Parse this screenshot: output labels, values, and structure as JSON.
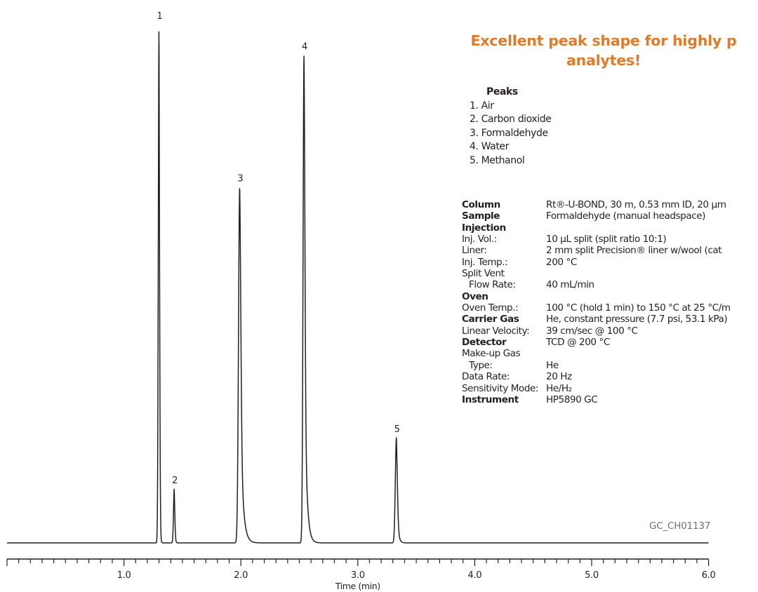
{
  "headline": {
    "line1": "Excellent peak shape for highly p",
    "line2": "analytes!"
  },
  "peaks": {
    "title": "Peaks",
    "items": [
      {
        "label": "1.  Air"
      },
      {
        "label": "2.  Carbon dioxide"
      },
      {
        "label": "3.  Formaldehyde"
      },
      {
        "label": "4.  Water"
      },
      {
        "label": "5.  Methanol"
      }
    ]
  },
  "conditions": [
    {
      "label": "Column",
      "value": "Rt®-U-BOND, 30 m, 0.53 mm ID, 20 µm",
      "bold": true
    },
    {
      "label": "Sample",
      "value": "Formaldehyde (manual headspace)",
      "bold": true
    },
    {
      "label": "Injection",
      "value": "",
      "bold": true
    },
    {
      "label": "Inj. Vol.:",
      "value": "10 µL split (split ratio 10:1)",
      "bold": false
    },
    {
      "label": "Liner:",
      "value": "2 mm split Precision® liner w/wool (cat",
      "bold": false
    },
    {
      "label": "Inj. Temp.:",
      "value": "200 °C",
      "bold": false
    },
    {
      "label": "Split Vent",
      "value": "",
      "bold": false
    },
    {
      "label": "Flow Rate:",
      "value": "40 mL/min",
      "bold": false,
      "indent": true
    },
    {
      "label": "Oven",
      "value": "",
      "bold": true
    },
    {
      "label": "Oven Temp.:",
      "value": "100 °C (hold 1 min) to 150 °C at 25 °C/m",
      "bold": false
    },
    {
      "label": "Carrier Gas",
      "value": "He, constant pressure (7.7 psi, 53.1 kPa)",
      "bold": true
    },
    {
      "label": "Linear Velocity:",
      "value": "39 cm/sec @ 100 °C",
      "bold": false
    },
    {
      "label": "Detector",
      "value": "TCD @ 200 °C",
      "bold": true
    },
    {
      "label": "Make-up Gas",
      "value": "",
      "bold": false
    },
    {
      "label": "Type:",
      "value": "He",
      "bold": false,
      "indent": true
    },
    {
      "label": "Data Rate:",
      "value": "20 Hz",
      "bold": false
    },
    {
      "label": "Sensitivity Mode:",
      "value": "He/H₂",
      "bold": false
    },
    {
      "label": "Instrument",
      "value": "HP5890 GC",
      "bold": true
    }
  ],
  "code": "GC_CH01137",
  "chart_data": {
    "type": "line",
    "title": "",
    "xlabel": "Time (min)",
    "ylabel": "",
    "xlim": [
      0.0,
      6.0
    ],
    "ylim": [
      0,
      100
    ],
    "x_ticks": [
      "1.0",
      "2.0",
      "3.0",
      "4.0",
      "5.0",
      "6.0"
    ],
    "x_tick_values": [
      1.0,
      2.0,
      3.0,
      4.0,
      5.0,
      6.0
    ],
    "minor_tick_step": 0.1,
    "grid": false,
    "legend": "none",
    "line_color": "#231f20",
    "peaks": [
      {
        "label": "1",
        "name": "Air",
        "time": 1.3,
        "height": 100,
        "width": 0.006,
        "tail": 0.004
      },
      {
        "label": "2",
        "name": "Carbon dioxide",
        "time": 1.43,
        "height": 10.4,
        "width": 0.006,
        "tail": 0.005
      },
      {
        "label": "3",
        "name": "Formaldehyde",
        "time": 1.99,
        "height": 68.7,
        "width": 0.01,
        "tail": 0.022
      },
      {
        "label": "4",
        "name": "Water",
        "time": 2.54,
        "height": 94.1,
        "width": 0.008,
        "tail": 0.018
      },
      {
        "label": "5",
        "name": "Methanol",
        "time": 3.33,
        "height": 20.3,
        "width": 0.009,
        "tail": 0.012
      }
    ]
  }
}
